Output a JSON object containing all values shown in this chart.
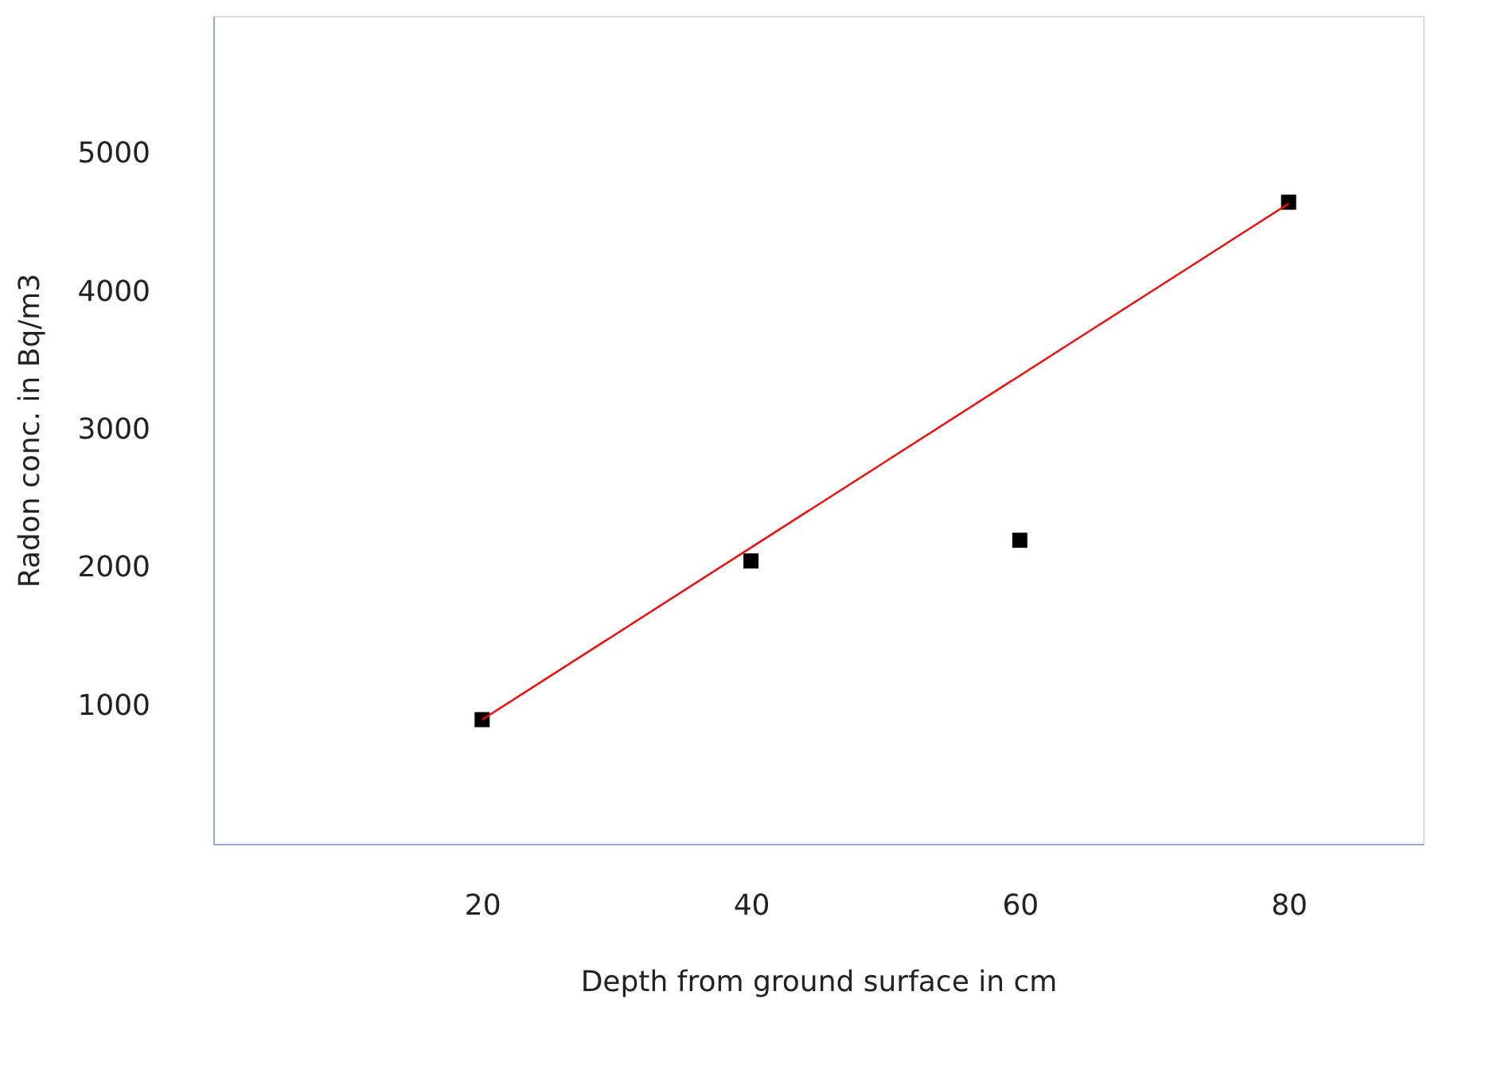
{
  "chart_data": {
    "type": "scatter",
    "xlabel": "Depth from ground surface in cm",
    "ylabel": "Radon conc. in Bq/m3",
    "xlim": [
      0,
      90
    ],
    "xticks": [
      20,
      40,
      60,
      80
    ],
    "ylim": [
      0,
      6000
    ],
    "yticks": [
      1000,
      2000,
      3000,
      4000,
      5000
    ],
    "grid": false,
    "series": [
      {
        "type": "scatter",
        "marker": "square",
        "color": "#000000",
        "x": [
          20,
          40,
          60,
          80
        ],
        "values": [
          900,
          2050,
          2200,
          4650
        ]
      },
      {
        "type": "line",
        "color": "#ff0000",
        "x": [
          20,
          80
        ],
        "values": [
          900,
          4640
        ],
        "line_style": "solid",
        "marker": "none"
      }
    ]
  }
}
